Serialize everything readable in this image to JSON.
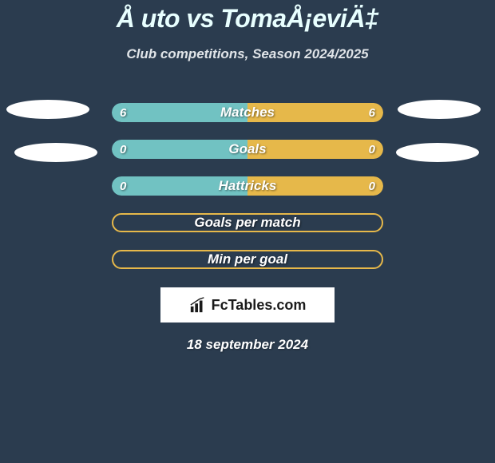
{
  "title": "Å uto vs TomaÅ¡eviÄ‡",
  "subtitle": "Club competitions, Season 2024/2025",
  "colors": {
    "background": "#2b3c4f",
    "left_accent": "#71c2c2",
    "right_accent": "#e6b84a",
    "bar_border": "#e6b84a",
    "text": "#ffffff",
    "logo_bg": "#ffffff",
    "logo_text": "#1a1a1a"
  },
  "stats": [
    {
      "label": "Matches",
      "left_value": "6",
      "right_value": "6",
      "left_pct": 50,
      "right_pct": 50,
      "fill_left": "#71c2c2",
      "fill_right": "#e6b84a",
      "show_values": true
    },
    {
      "label": "Goals",
      "left_value": "0",
      "right_value": "0",
      "left_pct": 50,
      "right_pct": 50,
      "fill_left": "#71c2c2",
      "fill_right": "#e6b84a",
      "show_values": true
    },
    {
      "label": "Hattricks",
      "left_value": "0",
      "right_value": "0",
      "left_pct": 50,
      "right_pct": 50,
      "fill_left": "#71c2c2",
      "fill_right": "#e6b84a",
      "show_values": true
    },
    {
      "label": "Goals per match",
      "left_value": "",
      "right_value": "",
      "left_pct": 0,
      "right_pct": 0,
      "fill_left": "transparent",
      "fill_right": "transparent",
      "show_values": false,
      "outline_only": true
    },
    {
      "label": "Min per goal",
      "left_value": "",
      "right_value": "",
      "left_pct": 0,
      "right_pct": 0,
      "fill_left": "transparent",
      "fill_right": "transparent",
      "show_values": false,
      "outline_only": true
    }
  ],
  "ellipses": {
    "color": "#ffffff"
  },
  "logo": {
    "text": "FcTables.com"
  },
  "date": "18 september 2024"
}
